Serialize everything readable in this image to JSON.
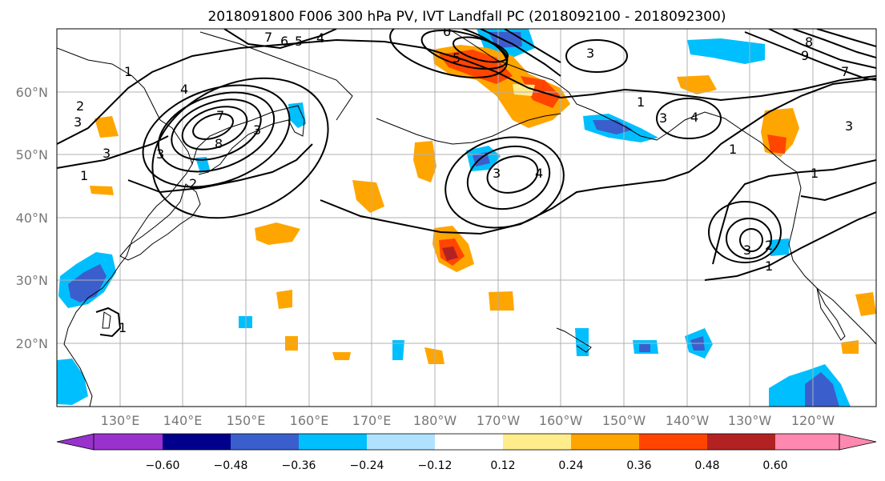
{
  "title": "2018091800 F006 300 hPa PV, IVT Landfall PC (2018092100 - 2018092300)",
  "lat_labels": [
    "60°N",
    "50°N",
    "40°N",
    "30°N",
    "20°N"
  ],
  "lon_labels": [
    "130°E",
    "140°E",
    "150°E",
    "160°E",
    "170°E",
    "180°W",
    "170°W",
    "160°W",
    "150°W",
    "140°W",
    "130°W",
    "120°W"
  ],
  "colorbar": {
    "ticks": [
      "−0.60",
      "−0.48",
      "−0.36",
      "−0.24",
      "−0.12",
      "0.12",
      "0.24",
      "0.36",
      "0.48",
      "0.60"
    ],
    "colors": [
      "#9932cc",
      "#00008b",
      "#3a5fcd",
      "#00bfff",
      "#b0e2ff",
      "#ffffff",
      "#ffec8b",
      "#ffa500",
      "#ff4500",
      "#b22222",
      "#ff88b0"
    ]
  },
  "contour_labels": [
    "7",
    "6",
    "5",
    "4",
    "6",
    "5",
    "3",
    "8",
    "9",
    "7",
    "1",
    "2",
    "3",
    "4",
    "7",
    "3",
    "8",
    "3",
    "1",
    "3",
    "2",
    "1",
    "3",
    "4",
    "1",
    "4",
    "3",
    "1",
    "3",
    "1",
    "3",
    "2",
    "1"
  ]
}
